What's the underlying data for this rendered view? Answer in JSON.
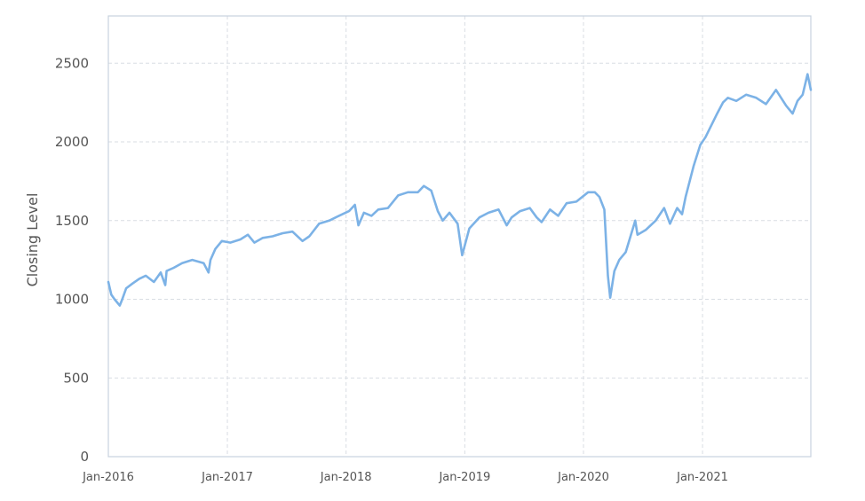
{
  "chart_data": {
    "type": "line",
    "title": "",
    "xlabel": "",
    "ylabel": "Closing Level",
    "ylim": [
      0,
      2800
    ],
    "xlim": [
      "2016-01-01",
      "2021-11-30"
    ],
    "y_ticks": [
      0,
      500,
      1000,
      1500,
      2000,
      2500
    ],
    "y_tick_labels": [
      "0",
      "500",
      "1000",
      "1500",
      "2000",
      "2500"
    ],
    "x_ticks": [
      "2016-01-01",
      "2017-01-01",
      "2018-01-01",
      "2019-01-01",
      "2020-01-01",
      "2021-01-01"
    ],
    "x_tick_labels": [
      "Jan-2016",
      "Jan-2017",
      "Jan-2018",
      "Jan-2019",
      "Jan-2020",
      "Jan-2021"
    ],
    "grid": true,
    "legend": false,
    "colors": {
      "line": "#7cb2e6",
      "grid": "#d9dde3",
      "border": "#c8d2de",
      "text": "#555555"
    },
    "series": [
      {
        "x": [
          "2016-01-01",
          "2016-01-10",
          "2016-01-20",
          "2016-02-05",
          "2016-02-11",
          "2016-02-25",
          "2016-03-15",
          "2016-04-05",
          "2016-04-25",
          "2016-05-20",
          "2016-06-10",
          "2016-06-24",
          "2016-06-28",
          "2016-07-20",
          "2016-08-15",
          "2016-09-15",
          "2016-10-20",
          "2016-11-04",
          "2016-11-10",
          "2016-11-25",
          "2016-12-15",
          "2017-01-10",
          "2017-02-10",
          "2017-03-05",
          "2017-03-25",
          "2017-04-20",
          "2017-05-20",
          "2017-06-20",
          "2017-07-20",
          "2017-08-20",
          "2017-09-10",
          "2017-10-10",
          "2017-11-10",
          "2017-12-10",
          "2018-01-10",
          "2018-01-28",
          "2018-02-08",
          "2018-02-25",
          "2018-03-20",
          "2018-04-10",
          "2018-05-10",
          "2018-06-10",
          "2018-07-10",
          "2018-08-10",
          "2018-08-28",
          "2018-09-20",
          "2018-10-10",
          "2018-10-25",
          "2018-11-15",
          "2018-12-10",
          "2018-12-24",
          "2019-01-15",
          "2019-02-15",
          "2019-03-15",
          "2019-04-15",
          "2019-05-10",
          "2019-05-25",
          "2019-06-20",
          "2019-07-20",
          "2019-08-10",
          "2019-08-25",
          "2019-09-20",
          "2019-10-15",
          "2019-11-10",
          "2019-12-10",
          "2020-01-15",
          "2020-02-05",
          "2020-02-19",
          "2020-03-05",
          "2020-03-16",
          "2020-03-23",
          "2020-04-05",
          "2020-04-20",
          "2020-05-10",
          "2020-06-08",
          "2020-06-15",
          "2020-07-10",
          "2020-08-10",
          "2020-09-05",
          "2020-09-23",
          "2020-10-15",
          "2020-10-30",
          "2020-11-10",
          "2020-12-05",
          "2020-12-25",
          "2021-01-10",
          "2021-02-15",
          "2021-03-05",
          "2021-03-20",
          "2021-04-15",
          "2021-05-15",
          "2021-06-15",
          "2021-07-15",
          "2021-08-15",
          "2021-09-15",
          "2021-10-05",
          "2021-10-20",
          "2021-11-05",
          "2021-11-20",
          "2021-11-30"
        ],
        "y": [
          1110,
          1030,
          1000,
          960,
          990,
          1070,
          1100,
          1130,
          1150,
          1110,
          1170,
          1090,
          1180,
          1200,
          1230,
          1250,
          1230,
          1170,
          1250,
          1320,
          1370,
          1360,
          1380,
          1410,
          1360,
          1390,
          1400,
          1420,
          1430,
          1370,
          1400,
          1480,
          1500,
          1530,
          1560,
          1600,
          1470,
          1550,
          1530,
          1570,
          1580,
          1660,
          1680,
          1680,
          1720,
          1690,
          1560,
          1500,
          1550,
          1480,
          1280,
          1450,
          1520,
          1550,
          1570,
          1470,
          1520,
          1560,
          1580,
          1520,
          1490,
          1570,
          1530,
          1610,
          1620,
          1680,
          1680,
          1650,
          1570,
          1150,
          1010,
          1180,
          1250,
          1300,
          1500,
          1410,
          1440,
          1500,
          1580,
          1480,
          1580,
          1540,
          1650,
          1850,
          1980,
          2030,
          2180,
          2250,
          2280,
          2260,
          2300,
          2280,
          2240,
          2330,
          2230,
          2180,
          2260,
          2300,
          2430,
          2330
        ]
      }
    ]
  }
}
